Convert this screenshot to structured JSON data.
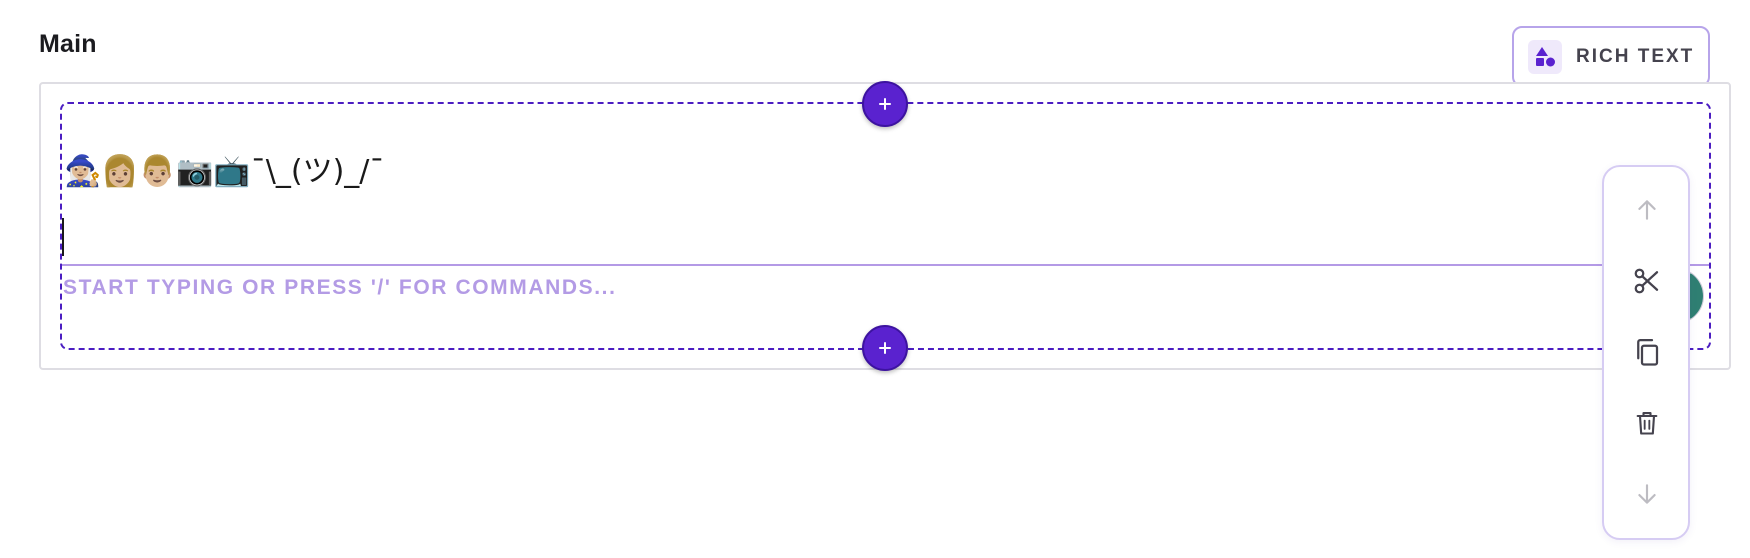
{
  "section": {
    "title": "Main"
  },
  "type_chip": {
    "label": "RICH TEXT",
    "icon": "shapes-icon"
  },
  "block": {
    "content": "🧙🏼‍♀️👩🏼👨🏼📷📺¯\\_(ツ)_/¯",
    "placeholder": "START TYPING OR PRESS '/' FOR COMMANDS..."
  },
  "buttons": {
    "add_top_icon": "plus-icon",
    "add_bottom_icon": "plus-icon"
  },
  "toolbar": {
    "items": [
      {
        "name": "move-up",
        "icon": "arrow-up-icon",
        "enabled": false
      },
      {
        "name": "cut",
        "icon": "scissors-icon",
        "enabled": true
      },
      {
        "name": "copy",
        "icon": "copy-icon",
        "enabled": true
      },
      {
        "name": "delete",
        "icon": "trash-icon",
        "enabled": true
      },
      {
        "name": "move-down",
        "icon": "arrow-down-icon",
        "enabled": false
      }
    ]
  },
  "colors": {
    "accent": "#5a22cf",
    "accent_border": "#4b1dc2",
    "placeholder": "#b39be5",
    "toolbar_border": "#d6ccf3",
    "chip_border": "#b7a4ea"
  }
}
